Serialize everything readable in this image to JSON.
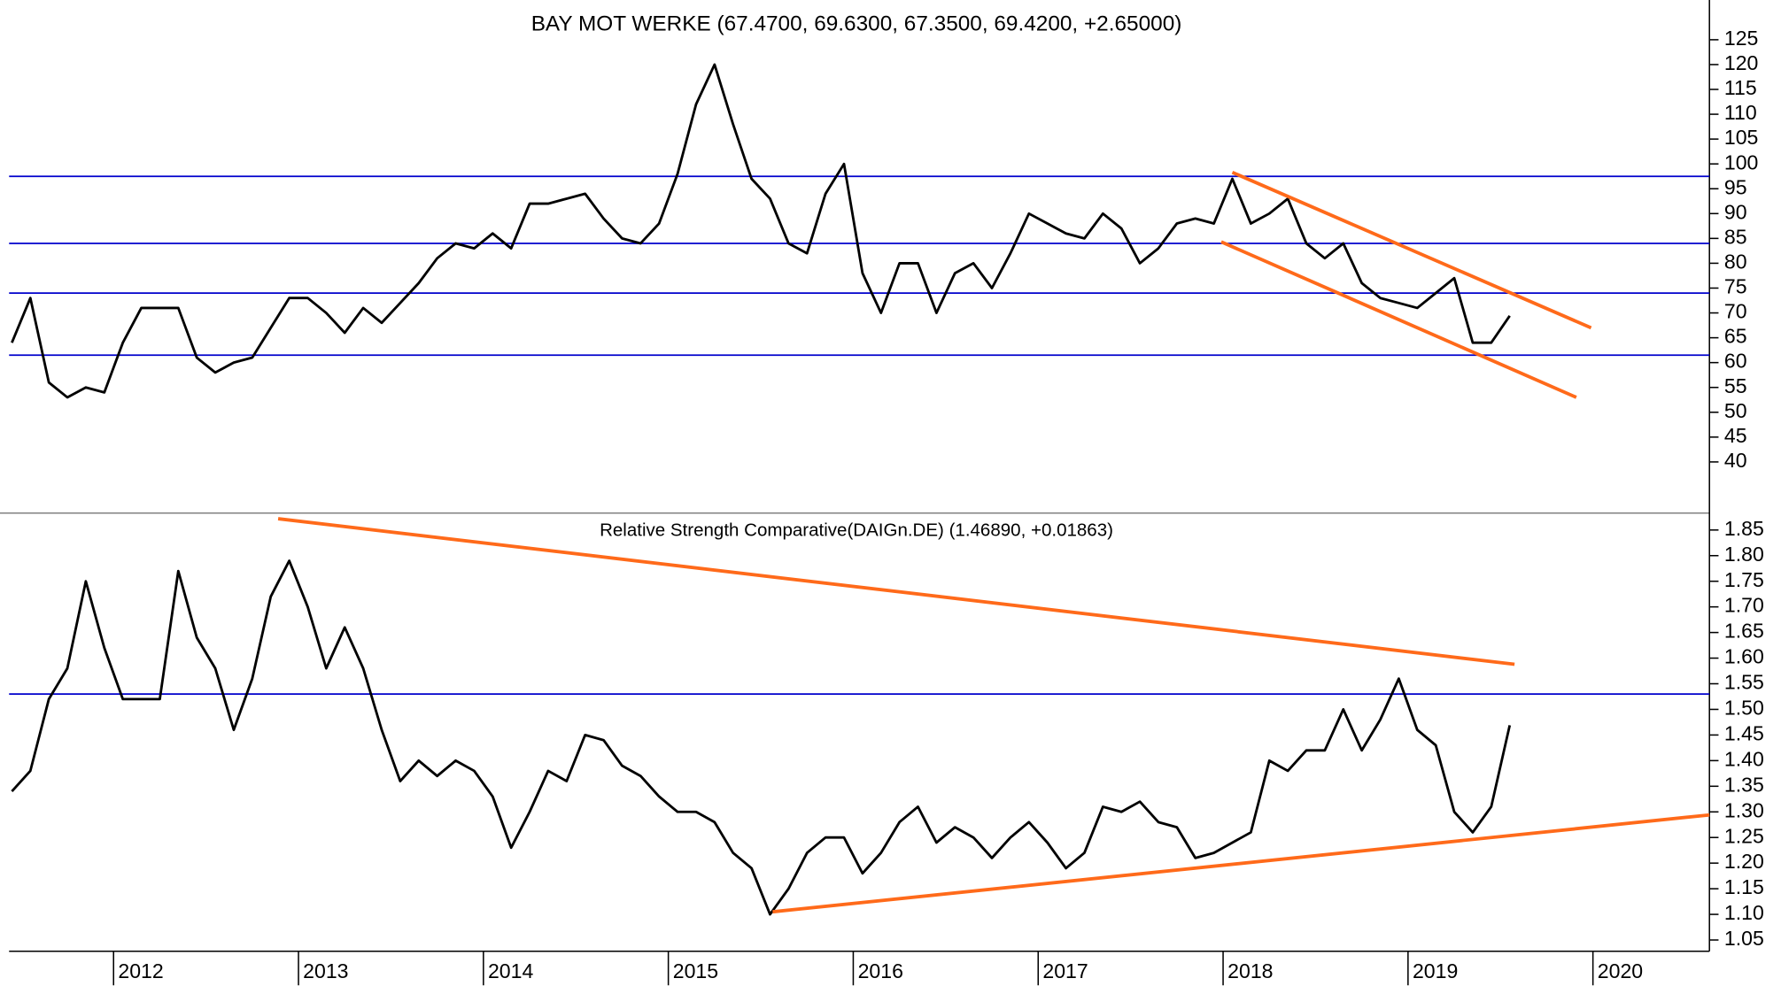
{
  "chart_data": [
    {
      "type": "line",
      "title": "BAY MOT WERKE (67.4700, 69.6300, 67.3500, 69.4200, +2.65000)",
      "x": [
        2011.45,
        2011.55,
        2011.65,
        2011.75,
        2011.85,
        2011.95,
        2012.05,
        2012.15,
        2012.25,
        2012.35,
        2012.45,
        2012.55,
        2012.65,
        2012.75,
        2012.85,
        2012.95,
        2013.05,
        2013.15,
        2013.25,
        2013.35,
        2013.45,
        2013.55,
        2013.65,
        2013.75,
        2013.85,
        2013.95,
        2014.05,
        2014.15,
        2014.25,
        2014.35,
        2014.45,
        2014.55,
        2014.65,
        2014.75,
        2014.85,
        2014.95,
        2015.05,
        2015.15,
        2015.25,
        2015.35,
        2015.45,
        2015.55,
        2015.65,
        2015.75,
        2015.85,
        2015.95,
        2016.05,
        2016.15,
        2016.25,
        2016.35,
        2016.45,
        2016.55,
        2016.65,
        2016.75,
        2016.85,
        2016.95,
        2017.05,
        2017.15,
        2017.25,
        2017.35,
        2017.45,
        2017.55,
        2017.65,
        2017.75,
        2017.85,
        2017.95,
        2018.05,
        2018.15,
        2018.25,
        2018.35,
        2018.45,
        2018.55,
        2018.65,
        2018.75,
        2018.85,
        2018.95,
        2019.05,
        2019.15,
        2019.25,
        2019.35,
        2019.45,
        2019.55
      ],
      "series": [
        {
          "color": "#000000",
          "values": [
            64,
            73,
            56,
            53,
            55,
            54,
            64,
            71,
            71,
            71,
            61,
            58,
            60,
            61,
            67,
            73,
            73,
            70,
            66,
            71,
            68,
            72,
            76,
            81,
            84,
            83,
            86,
            83,
            92,
            92,
            93,
            94,
            89,
            85,
            84,
            88,
            98,
            112,
            120,
            108,
            97,
            93,
            84,
            82,
            94,
            100,
            78,
            70,
            80,
            80,
            70,
            78,
            80,
            75,
            82,
            90,
            88,
            86,
            85,
            90,
            87,
            80,
            83,
            88,
            89,
            88,
            97,
            88,
            90,
            93,
            84,
            81,
            84,
            76,
            73,
            72,
            71,
            74,
            77,
            64,
            64,
            69.42
          ]
        }
      ],
      "xlim": [
        2011.435,
        2020.63
      ],
      "ylim": [
        29.7,
        133
      ],
      "yticks": [
        40,
        45,
        50,
        55,
        60,
        65,
        70,
        75,
        80,
        85,
        90,
        95,
        100,
        105,
        110,
        115,
        120,
        125
      ],
      "hlines": [
        {
          "value": 97.5,
          "color": "#0000cc"
        },
        {
          "value": 84,
          "color": "#0000cc"
        },
        {
          "value": 74,
          "color": "#0000cc"
        },
        {
          "value": 61.5,
          "color": "#0000cc"
        }
      ],
      "trendlines": [
        {
          "x": [
            2018.05,
            2019.99
          ],
          "y": [
            98.3,
            67
          ],
          "color": "#ff6a1a"
        },
        {
          "x": [
            2017.99,
            2019.91
          ],
          "y": [
            84.3,
            53
          ],
          "color": "#ff6a1a"
        }
      ]
    },
    {
      "type": "line",
      "title": "Relative Strength Comparative(DAIGn.DE) (1.46890, +0.01863)",
      "x": [
        2011.45,
        2011.55,
        2011.65,
        2011.75,
        2011.85,
        2011.95,
        2012.05,
        2012.15,
        2012.25,
        2012.35,
        2012.45,
        2012.55,
        2012.65,
        2012.75,
        2012.85,
        2012.95,
        2013.05,
        2013.15,
        2013.25,
        2013.35,
        2013.45,
        2013.55,
        2013.65,
        2013.75,
        2013.85,
        2013.95,
        2014.05,
        2014.15,
        2014.25,
        2014.35,
        2014.45,
        2014.55,
        2014.65,
        2014.75,
        2014.85,
        2014.95,
        2015.05,
        2015.15,
        2015.25,
        2015.35,
        2015.45,
        2015.55,
        2015.65,
        2015.75,
        2015.85,
        2015.95,
        2016.05,
        2016.15,
        2016.25,
        2016.35,
        2016.45,
        2016.55,
        2016.65,
        2016.75,
        2016.85,
        2016.95,
        2017.05,
        2017.15,
        2017.25,
        2017.35,
        2017.45,
        2017.55,
        2017.65,
        2017.75,
        2017.85,
        2017.95,
        2018.05,
        2018.15,
        2018.25,
        2018.35,
        2018.45,
        2018.55,
        2018.65,
        2018.75,
        2018.85,
        2018.95,
        2019.05,
        2019.15,
        2019.25,
        2019.35,
        2019.45,
        2019.55
      ],
      "series": [
        {
          "color": "#000000",
          "values": [
            1.34,
            1.38,
            1.52,
            1.58,
            1.75,
            1.62,
            1.52,
            1.52,
            1.52,
            1.77,
            1.64,
            1.58,
            1.46,
            1.56,
            1.72,
            1.79,
            1.7,
            1.58,
            1.66,
            1.58,
            1.46,
            1.36,
            1.4,
            1.37,
            1.4,
            1.38,
            1.33,
            1.23,
            1.3,
            1.38,
            1.36,
            1.45,
            1.44,
            1.39,
            1.37,
            1.33,
            1.3,
            1.3,
            1.28,
            1.22,
            1.19,
            1.1,
            1.15,
            1.22,
            1.25,
            1.25,
            1.18,
            1.22,
            1.28,
            1.31,
            1.24,
            1.27,
            1.25,
            1.21,
            1.25,
            1.28,
            1.24,
            1.19,
            1.22,
            1.31,
            1.3,
            1.32,
            1.28,
            1.27,
            1.21,
            1.22,
            1.24,
            1.26,
            1.4,
            1.38,
            1.42,
            1.42,
            1.5,
            1.42,
            1.48,
            1.56,
            1.46,
            1.43,
            1.3,
            1.26,
            1.31,
            1.4689
          ]
        }
      ],
      "xlim": [
        2011.435,
        2020.63
      ],
      "xticks": [
        2012,
        2013,
        2014,
        2015,
        2016,
        2017,
        2018,
        2019,
        2020
      ],
      "ylim": [
        1.028,
        1.883
      ],
      "yticks": [
        1.05,
        {
          "value": 1.1,
          "label": "1.10"
        },
        1.15,
        {
          "value": 1.2,
          "label": "1.20"
        },
        1.25,
        {
          "value": 1.3,
          "label": "1.30"
        },
        1.35,
        {
          "value": 1.4,
          "label": "1.40"
        },
        1.45,
        {
          "value": 1.5,
          "label": "1.50"
        },
        1.55,
        {
          "value": 1.6,
          "label": "1.60"
        },
        1.65,
        {
          "value": 1.7,
          "label": "1.70"
        },
        1.75,
        {
          "value": 1.8,
          "label": "1.80"
        },
        1.85
      ],
      "hlines": [
        {
          "value": 1.53,
          "color": "#0000cc"
        }
      ],
      "trendlines": [
        {
          "x": [
            2012.89,
            2019.576
          ],
          "y": [
            1.872,
            1.588
          ],
          "color": "#ff6a1a"
        },
        {
          "x": [
            2015.564,
            2020.63
          ],
          "y": [
            1.105,
            1.294
          ],
          "color": "#ff6a1a"
        }
      ]
    }
  ]
}
